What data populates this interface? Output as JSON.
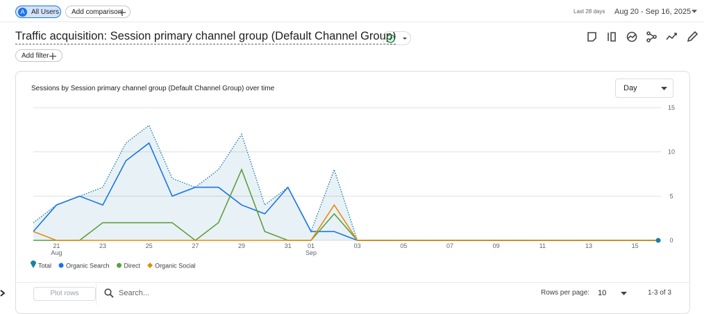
{
  "header": {
    "segment_avatar": "A",
    "segment": "All Users",
    "add_comparison": "Add comparison",
    "date_range_label": "Last 28 days",
    "date_range": "Aug 20 - Sep 16, 2025"
  },
  "report": {
    "title": "Traffic acquisition: Session primary channel group (Default Channel Group)",
    "add_filter": "Add filter"
  },
  "chart_data": {
    "type": "line",
    "title": "Sessions by Session primary channel group (Default Channel Group) over time",
    "granularity": "Day",
    "categories": [
      null,
      "21",
      null,
      "23",
      null,
      "25",
      null,
      "27",
      null,
      "29",
      null,
      "31",
      "01",
      null,
      "03",
      null,
      "05",
      null,
      "07",
      null,
      "09",
      null,
      "11",
      null,
      "13",
      null,
      "15",
      null
    ],
    "category_sublabels": [
      null,
      "Aug",
      null,
      null,
      null,
      null,
      null,
      null,
      null,
      null,
      null,
      null,
      "Sep",
      null,
      null,
      null,
      null,
      null,
      null,
      null,
      null,
      null,
      null,
      null,
      null,
      null,
      null,
      null
    ],
    "ylim": [
      0,
      15
    ],
    "yticks": [
      0,
      5,
      10,
      15
    ],
    "grid": true,
    "y_axis_side": "right",
    "series": [
      {
        "name": "Total",
        "color": "#1b7fa8",
        "style": "dotted",
        "area": true,
        "values": [
          2,
          4,
          5,
          6,
          11,
          13,
          7,
          6,
          8,
          12,
          4,
          6,
          1,
          8,
          0,
          0,
          0,
          0,
          0,
          0,
          0,
          0,
          0,
          0,
          0,
          0,
          0,
          0
        ]
      },
      {
        "name": "Organic Search",
        "color": "#1a73e8",
        "style": "solid",
        "values": [
          1,
          4,
          5,
          4,
          9,
          11,
          5,
          6,
          6,
          4,
          3,
          6,
          1,
          1,
          0,
          0,
          0,
          0,
          0,
          0,
          0,
          0,
          0,
          0,
          0,
          0,
          0,
          0
        ]
      },
      {
        "name": "Direct",
        "color": "#5e9e3f",
        "style": "solid",
        "values": [
          0,
          0,
          0,
          2,
          2,
          2,
          2,
          0,
          2,
          8,
          1,
          0,
          0,
          3,
          0,
          0,
          0,
          0,
          0,
          0,
          0,
          0,
          0,
          0,
          0,
          0,
          0,
          0
        ]
      },
      {
        "name": "Organic Social",
        "color": "#e8890c",
        "style": "solid",
        "values": [
          1,
          0,
          0,
          0,
          0,
          0,
          0,
          0,
          0,
          0,
          0,
          0,
          0,
          4,
          0,
          0,
          0,
          0,
          0,
          0,
          0,
          0,
          0,
          0,
          0,
          0,
          0,
          0
        ]
      }
    ]
  },
  "table_controls": {
    "plot_rows": "Plot rows",
    "search_placeholder": "Search...",
    "rows_per_page_label": "Rows per page:",
    "rows_per_page": "10",
    "pagination": "1-3 of 3"
  }
}
